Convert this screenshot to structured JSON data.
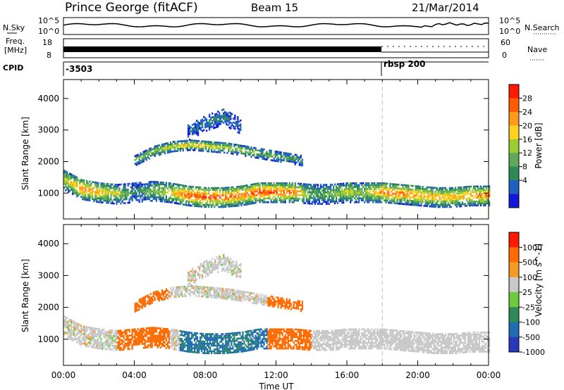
{
  "header": {
    "station": "Prince George (fitACF)",
    "beam": "Beam 15",
    "date": "21/Mar/2014"
  },
  "top_panel": {
    "left_label": "N.Sky",
    "left_ticks": [
      "10^5",
      "10^0"
    ],
    "right_ticks": [
      "10^5",
      "10^0"
    ],
    "right_label": "N.Search"
  },
  "freq_panel": {
    "left_label_1": "Freq.",
    "left_label_2": "[MHz]",
    "left_ticks": [
      "18",
      "8"
    ],
    "right_ticks": [
      "60",
      "0"
    ],
    "right_label": "Nave"
  },
  "cpid_panel": {
    "label": "CPID",
    "segments": [
      {
        "start_ut": 0.0,
        "label": "-3503"
      },
      {
        "start_ut": 18.0,
        "label": "rbsp 200"
      }
    ]
  },
  "chart_data": [
    {
      "type": "heatmap",
      "name": "power",
      "xlabel": "Time UT",
      "ylabel": "Slant Range [km]",
      "x_ticks": [
        "00:00",
        "04:00",
        "08:00",
        "12:00",
        "16:00",
        "20:00",
        "00:00"
      ],
      "xlim_hours": [
        0,
        24
      ],
      "y_ticks": [
        1000,
        2000,
        3000,
        4000
      ],
      "ylim_km": [
        180,
        4600
      ],
      "colorbar": {
        "label": "Power [dB]",
        "ticks": [
          "28",
          "24",
          "20",
          "16",
          "12",
          "8",
          "4"
        ],
        "range": [
          0,
          32
        ],
        "colors": [
          "#1418d8",
          "#2060c0",
          "#2e8b57",
          "#5faa5a",
          "#9acd32",
          "#ffd21f",
          "#ff9b1a",
          "#ff5a00",
          "#ff1a00"
        ]
      },
      "features": [
        {
          "desc": "main echo band",
          "t_start": 0.0,
          "t_end": 24.0,
          "range_center_km": [
            1400,
            1100,
            1000,
            950,
            1000,
            1050,
            1000,
            900,
            850,
            850,
            900,
            1000,
            1000,
            1000,
            950,
            950,
            1000,
            1000,
            1000,
            950,
            900,
            850,
            850,
            900,
            900
          ],
          "peak_power_db": [
            18,
            26,
            22,
            18,
            8,
            14,
            20,
            28,
            30,
            28,
            26,
            30,
            28,
            26,
            12,
            14,
            18,
            16,
            26,
            26,
            24,
            22,
            22,
            24,
            26
          ]
        },
        {
          "desc": "arc",
          "t_start": 4.0,
          "t_end": 13.5,
          "range_center_km": [
            2000,
            2300,
            2450,
            2500,
            2450,
            2400,
            2300,
            2200,
            2100,
            2000
          ],
          "peak_power_db": [
            14,
            16,
            20,
            22,
            20,
            18,
            16,
            14,
            12,
            10
          ]
        },
        {
          "desc": "plume",
          "t_start": 7.0,
          "t_end": 10.0,
          "range_center_km": [
            2900,
            3200,
            3400,
            3100
          ],
          "peak_power_db": [
            6,
            8,
            8,
            6
          ]
        }
      ]
    },
    {
      "type": "heatmap",
      "name": "velocity",
      "xlabel": "Time UT",
      "ylabel": "Slant Range [km]",
      "x_ticks": [
        "00:00",
        "04:00",
        "08:00",
        "12:00",
        "16:00",
        "20:00",
        "00:00"
      ],
      "xlim_hours": [
        0,
        24
      ],
      "y_ticks": [
        1000,
        2000,
        3000,
        4000
      ],
      "ylim_km": [
        180,
        4600
      ],
      "colorbar": {
        "label": "Velocity [m s^-1]",
        "ticks": [
          "1000",
          "500",
          "100",
          "25",
          "-25",
          "-100",
          "-500",
          "-1000"
        ],
        "colors": [
          "#2838b8",
          "#1f6db4",
          "#2e8b57",
          "#6ecb3c",
          "#c8c8c8",
          "#f59a23",
          "#ff6a00",
          "#ff1a00"
        ]
      }
    }
  ]
}
